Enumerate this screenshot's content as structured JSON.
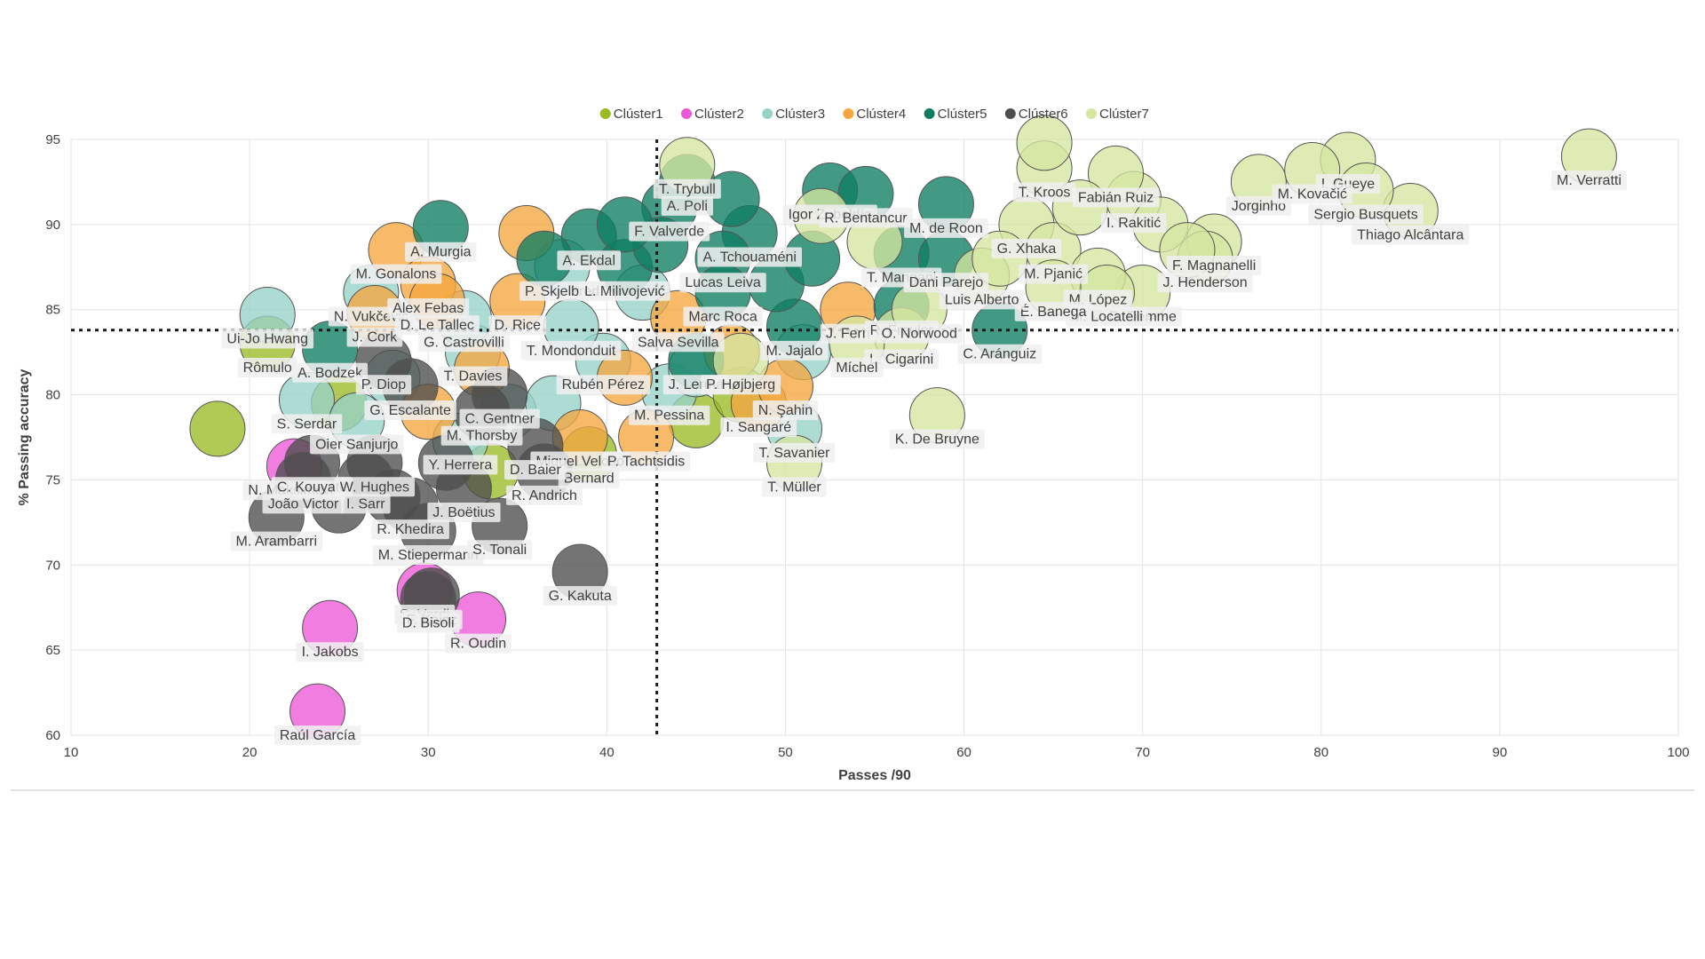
{
  "chart_data": {
    "type": "scatter",
    "xlabel": "Passes /90",
    "ylabel": "% Passing accuracy",
    "xlim": [
      10,
      100
    ],
    "ylim": [
      60,
      95
    ],
    "xticks": [
      10,
      20,
      30,
      40,
      50,
      60,
      70,
      80,
      90,
      100
    ],
    "yticks": [
      60,
      65,
      70,
      75,
      80,
      85,
      90,
      95
    ],
    "grid": true,
    "legend_position": "top-center",
    "reference_lines": {
      "x": 42.8,
      "y": 83.8
    },
    "series": [
      {
        "name": "Clúster1",
        "color": "#9bbb26",
        "points": [
          {
            "label": "Rômulo",
            "x": 21,
            "y": 83
          },
          {
            "label": "",
            "x": 18.2,
            "y": 78
          },
          {
            "label": "Bernard",
            "x": 39,
            "y": 76.5
          },
          {
            "label": "",
            "x": 25,
            "y": 79.5
          },
          {
            "label": "",
            "x": 33.5,
            "y": 75.5
          },
          {
            "label": "",
            "x": 45,
            "y": 78.5
          },
          {
            "label": "",
            "x": 47.5,
            "y": 80
          }
        ]
      },
      {
        "name": "Clúster2",
        "color": "#ee58d8",
        "points": [
          {
            "label": "S. Verdi",
            "x": 29.8,
            "y": 68.5
          },
          {
            "label": "R. Oudin",
            "x": 32.8,
            "y": 66.8
          },
          {
            "label": "I. Jakobs",
            "x": 24.5,
            "y": 66.3
          },
          {
            "label": "Raúl García",
            "x": 23.8,
            "y": 61.4
          },
          {
            "label": "N. Maksimović",
            "x": 22.5,
            "y": 75.8
          }
        ]
      },
      {
        "name": "Clúster3",
        "color": "#96d2c8",
        "points": [
          {
            "label": "Ui-Jo Hwang",
            "x": 21,
            "y": 84.7
          },
          {
            "label": "N. Vukčević",
            "x": 26.8,
            "y": 86
          },
          {
            "label": "S. Serdar",
            "x": 23.2,
            "y": 79.7
          },
          {
            "label": "P. Skjelbred",
            "x": 37.5,
            "y": 87.5
          },
          {
            "label": "T. Davies",
            "x": 32.5,
            "y": 82.5
          },
          {
            "label": "G. Castrovilli",
            "x": 32,
            "y": 84.5
          },
          {
            "label": "Rubén Pérez",
            "x": 39.8,
            "y": 82
          },
          {
            "label": "T. Mondonduit",
            "x": 38,
            "y": 84
          },
          {
            "label": "Oier Sanjurjo",
            "x": 26,
            "y": 78.5
          },
          {
            "label": "Y. Herrera",
            "x": 31.8,
            "y": 77.3
          },
          {
            "label": "M. Pessina",
            "x": 43.5,
            "y": 80.2
          },
          {
            "label": "T. Savanier",
            "x": 50.5,
            "y": 78
          },
          {
            "label": "",
            "x": 28,
            "y": 81
          },
          {
            "label": "",
            "x": 34.5,
            "y": 79
          },
          {
            "label": "",
            "x": 37,
            "y": 79.5
          },
          {
            "label": "",
            "x": 45,
            "y": 81.5
          },
          {
            "label": "",
            "x": 51,
            "y": 82.5
          },
          {
            "label": "",
            "x": 42,
            "y": 86
          }
        ]
      },
      {
        "name": "Clúster4",
        "color": "#f4a63f",
        "points": [
          {
            "label": "M. Gonalons",
            "x": 28.2,
            "y": 88.5
          },
          {
            "label": "Alex Febas",
            "x": 30,
            "y": 86.5
          },
          {
            "label": "J. Cork",
            "x": 27,
            "y": 84.8
          },
          {
            "label": "D. Le Tallec",
            "x": 30.5,
            "y": 85.5
          },
          {
            "label": "D. Rice",
            "x": 35,
            "y": 85.5
          },
          {
            "label": "Miguel Veloso",
            "x": 38.5,
            "y": 77.5
          },
          {
            "label": "I. Sangaré",
            "x": 48.5,
            "y": 79.5
          },
          {
            "label": "Salva Sevilla",
            "x": 44,
            "y": 84.5
          },
          {
            "label": "J. Ferri",
            "x": 53.5,
            "y": 85
          },
          {
            "label": "N. Şahin",
            "x": 50,
            "y": 80.5
          },
          {
            "label": "",
            "x": 35.5,
            "y": 89.5
          },
          {
            "label": "",
            "x": 33,
            "y": 81.5
          },
          {
            "label": "",
            "x": 41,
            "y": 81
          },
          {
            "label": "",
            "x": 47,
            "y": 82.5
          },
          {
            "label": "",
            "x": 30,
            "y": 79
          },
          {
            "label": "P. Tachtsidis",
            "x": 42.2,
            "y": 77.5
          }
        ]
      },
      {
        "name": "Clúster5",
        "color": "#0e7d62",
        "points": [
          {
            "label": "A. Murgia",
            "x": 30.7,
            "y": 89.8
          },
          {
            "label": "A. Bodzek",
            "x": 24.5,
            "y": 82.7
          },
          {
            "label": "A. Ekdal",
            "x": 39,
            "y": 89.3
          },
          {
            "label": "L. Milivojević",
            "x": 41,
            "y": 87.5
          },
          {
            "label": "F. Valverde",
            "x": 43.5,
            "y": 91
          },
          {
            "label": "A. Tchouaméni",
            "x": 48,
            "y": 89.5
          },
          {
            "label": "Lucas Leiva",
            "x": 46.5,
            "y": 88
          },
          {
            "label": "Marc Roca",
            "x": 46.5,
            "y": 86
          },
          {
            "label": "Igor Zubeldía",
            "x": 52.5,
            "y": 92
          },
          {
            "label": "R. Bentancur",
            "x": 54.5,
            "y": 91.8
          },
          {
            "label": "M. de Roon",
            "x": 59,
            "y": 91.2
          },
          {
            "label": "T. Mangani",
            "x": 56.5,
            "y": 88.3
          },
          {
            "label": "Dani Parejo",
            "x": 59,
            "y": 88
          },
          {
            "label": "R. Freuler",
            "x": 56.5,
            "y": 85.2
          },
          {
            "label": "C. Aránguiz",
            "x": 62,
            "y": 83.8
          },
          {
            "label": "J. Lerma",
            "x": 45,
            "y": 82
          },
          {
            "label": "M. Jajalo",
            "x": 50.5,
            "y": 84
          },
          {
            "label": "A. Poli",
            "x": 44.5,
            "y": 92.5
          },
          {
            "label": "",
            "x": 47,
            "y": 91.5
          },
          {
            "label": "",
            "x": 49.5,
            "y": 86.5
          },
          {
            "label": "",
            "x": 51.5,
            "y": 88
          },
          {
            "label": "",
            "x": 43,
            "y": 88.8
          },
          {
            "label": "",
            "x": 36.5,
            "y": 88
          },
          {
            "label": "",
            "x": 41,
            "y": 90
          }
        ]
      },
      {
        "name": "Clúster6",
        "color": "#4d4d4d",
        "points": [
          {
            "label": "C. Kouyaté",
            "x": 23.5,
            "y": 76
          },
          {
            "label": "M. Arambarri",
            "x": 21.5,
            "y": 72.8
          },
          {
            "label": "João Victor",
            "x": 23,
            "y": 75
          },
          {
            "label": "W. Hughes",
            "x": 27,
            "y": 76
          },
          {
            "label": "I. Sarr",
            "x": 26.5,
            "y": 75
          },
          {
            "label": "R. Khedira",
            "x": 29,
            "y": 73.5
          },
          {
            "label": "M. Stiepermann",
            "x": 30,
            "y": 72
          },
          {
            "label": "J. Boëtius",
            "x": 32,
            "y": 74.5
          },
          {
            "label": "S. Tonali",
            "x": 34,
            "y": 72.3
          },
          {
            "label": "G. Kakuta",
            "x": 38.5,
            "y": 69.6
          },
          {
            "label": "F. Kainz",
            "x": 30.2,
            "y": 68.2
          },
          {
            "label": "D. Bisoli",
            "x": 30,
            "y": 68
          },
          {
            "label": "M. Thorsby",
            "x": 33,
            "y": 79
          },
          {
            "label": "D. Baier",
            "x": 36,
            "y": 77
          },
          {
            "label": "C. Gentner",
            "x": 34,
            "y": 80
          },
          {
            "label": "",
            "x": 28,
            "y": 74
          },
          {
            "label": "",
            "x": 25,
            "y": 73.5
          },
          {
            "label": "",
            "x": 31,
            "y": 76
          },
          {
            "label": "P. Diop",
            "x": 27.5,
            "y": 82
          },
          {
            "label": "G. Escalante",
            "x": 29,
            "y": 80.5
          },
          {
            "label": "R. Andrich",
            "x": 36.5,
            "y": 75.5
          }
        ]
      },
      {
        "name": "Clúster7",
        "color": "#d5e6a0",
        "points": [
          {
            "label": "M. Verratti",
            "x": 95,
            "y": 94
          },
          {
            "label": "I. Gueye",
            "x": 81.5,
            "y": 93.8
          },
          {
            "label": "Thiago Alcântara",
            "x": 85,
            "y": 90.8
          },
          {
            "label": "Sergio Busquets",
            "x": 82.5,
            "y": 92
          },
          {
            "label": "Jorginho",
            "x": 76.5,
            "y": 92.5
          },
          {
            "label": "M. Kovačić",
            "x": 79.5,
            "y": 93.2
          },
          {
            "label": "F. Magnanelli",
            "x": 74,
            "y": 89
          },
          {
            "label": "J. Henderson",
            "x": 73.5,
            "y": 88
          },
          {
            "label": "D. Demme",
            "x": 70,
            "y": 86
          },
          {
            "label": "I. Rakitić",
            "x": 69.5,
            "y": 91.5
          },
          {
            "label": "Fabián Ruiz",
            "x": 68.5,
            "y": 93
          },
          {
            "label": "T. Kroos",
            "x": 64.5,
            "y": 93.3
          },
          {
            "label": "G. Xhaka",
            "x": 63.5,
            "y": 90
          },
          {
            "label": "M. Pjanić",
            "x": 65,
            "y": 88.5
          },
          {
            "label": "M. López",
            "x": 67.5,
            "y": 87
          },
          {
            "label": "M. Locatelli",
            "x": 68,
            "y": 86
          },
          {
            "label": "É. Banega",
            "x": 65,
            "y": 86.3
          },
          {
            "label": "Luis Alberto",
            "x": 61,
            "y": 87
          },
          {
            "label": "L. Cigarini",
            "x": 56.5,
            "y": 83.5
          },
          {
            "label": "O. Norwood",
            "x": 57.5,
            "y": 85
          },
          {
            "label": "K. De Bruyne",
            "x": 58.5,
            "y": 78.8
          },
          {
            "label": "Míchel",
            "x": 54,
            "y": 83
          },
          {
            "label": "T. Müller",
            "x": 50.5,
            "y": 76
          },
          {
            "label": "P. Højbjerg",
            "x": 47.5,
            "y": 82
          },
          {
            "label": "T. Trybull",
            "x": 44.5,
            "y": 93.5
          },
          {
            "label": "",
            "x": 71,
            "y": 90
          },
          {
            "label": "",
            "x": 66.5,
            "y": 91
          },
          {
            "label": "",
            "x": 62,
            "y": 88
          },
          {
            "label": "",
            "x": 72.5,
            "y": 88.5
          },
          {
            "label": "",
            "x": 64.5,
            "y": 94.8
          },
          {
            "label": "",
            "x": 52,
            "y": 90.5
          },
          {
            "label": "",
            "x": 55,
            "y": 89
          }
        ]
      }
    ]
  }
}
